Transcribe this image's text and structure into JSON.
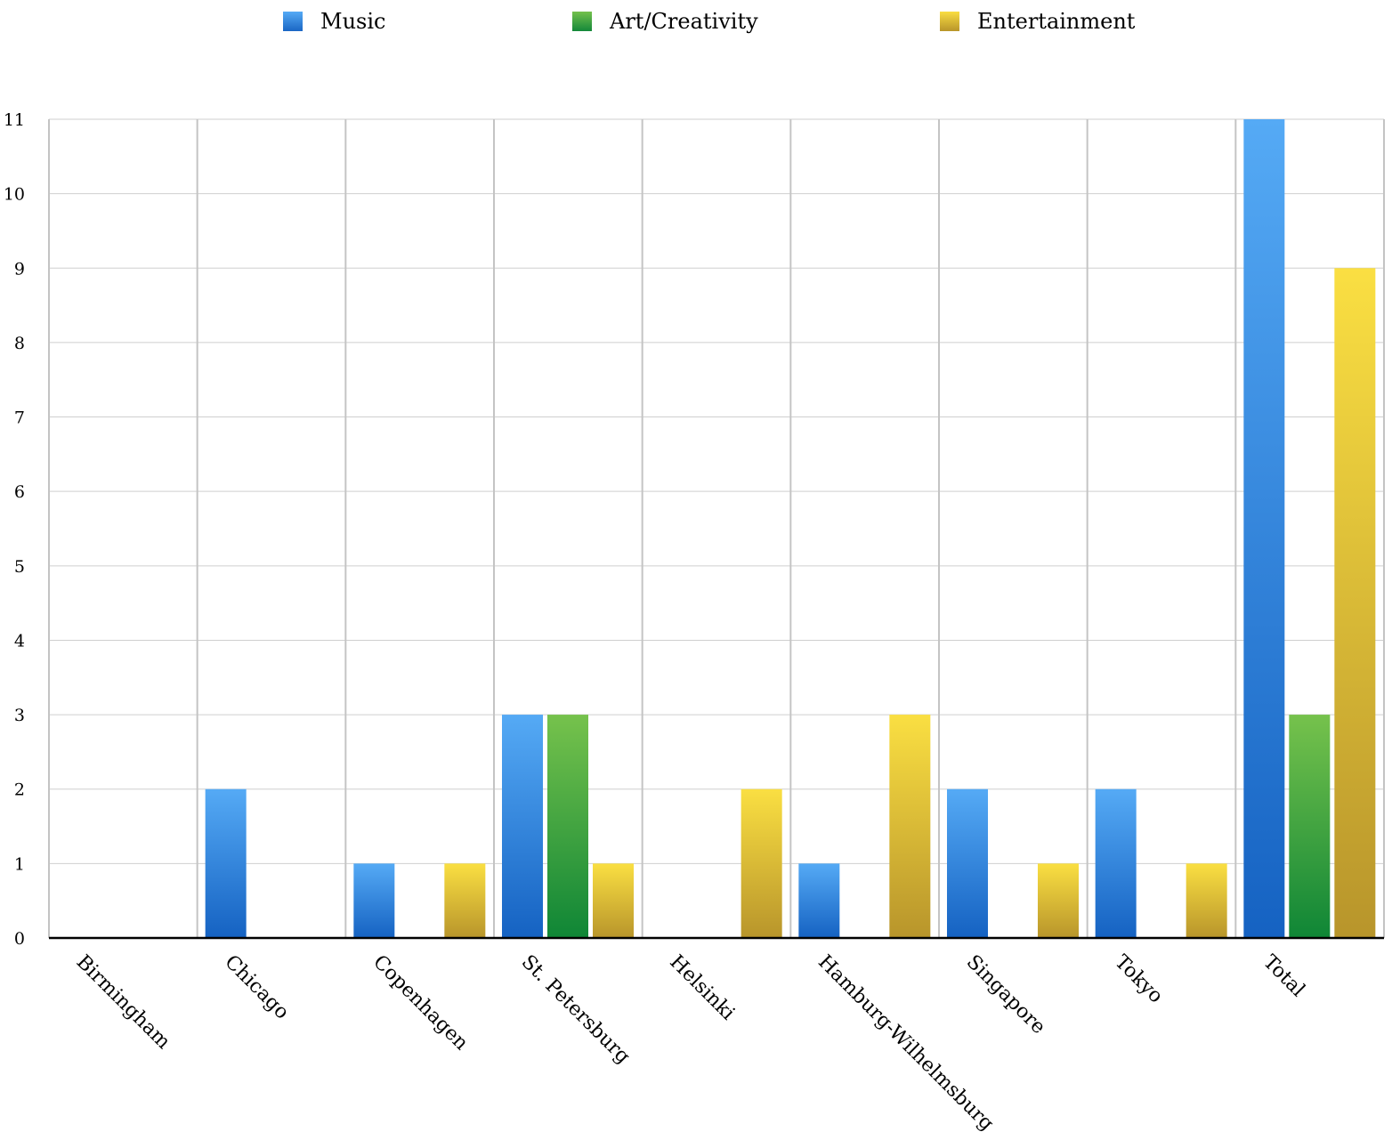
{
  "chart_data": {
    "type": "bar",
    "categories": [
      "Birmingham",
      "Chicago",
      "Copenhagen",
      "St. Petersburg",
      "Helsinki",
      "Hamburg-Wilhelmsburg",
      "Singapore",
      "Tokyo",
      "Total"
    ],
    "series": [
      {
        "name": "Music",
        "values": [
          0,
          2,
          1,
          3,
          0,
          1,
          2,
          2,
          11
        ],
        "color": "#2f86db"
      },
      {
        "name": "Art/Creativity",
        "values": [
          0,
          0,
          0,
          3,
          0,
          0,
          0,
          0,
          3
        ],
        "color": "#3aa23e"
      },
      {
        "name": "Entertainment",
        "values": [
          0,
          0,
          1,
          1,
          2,
          3,
          1,
          1,
          9
        ],
        "color": "#e2c33a"
      }
    ],
    "yticks": [
      "0",
      "1",
      "2",
      "3",
      "4",
      "5",
      "6",
      "7",
      "8",
      "9",
      "10",
      "11"
    ],
    "ylim": [
      0,
      11
    ],
    "grid": true,
    "legend_position": "top"
  }
}
